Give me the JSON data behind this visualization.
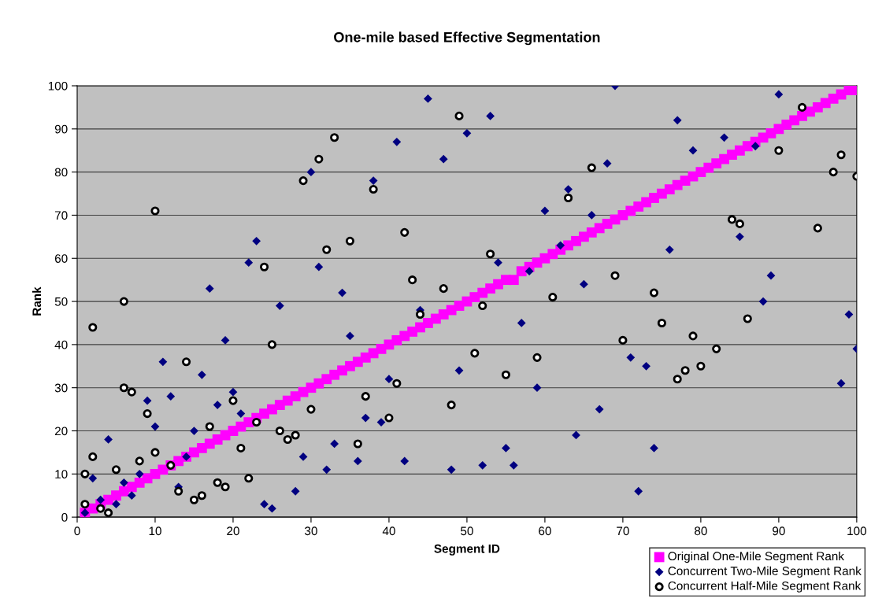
{
  "chart_data": {
    "type": "scatter",
    "title": "One-mile based Effective Segmentation",
    "xlabel": "Segment ID",
    "ylabel": "Rank",
    "xlim": [
      0,
      100
    ],
    "xticks": [
      0,
      10,
      20,
      30,
      40,
      50,
      60,
      70,
      80,
      90,
      100
    ],
    "ylim": [
      0,
      100
    ],
    "yticks": [
      0,
      10,
      20,
      30,
      40,
      50,
      60,
      70,
      80,
      90,
      100
    ],
    "grid": "y",
    "legend": "bottom right",
    "series": [
      {
        "name": "Original One-Mile Segment Rank",
        "color": "#ff00ff",
        "marker": "square",
        "x": [
          1,
          2,
          3,
          4,
          5,
          6,
          7,
          8,
          9,
          10,
          11,
          12,
          13,
          14,
          15,
          16,
          17,
          18,
          19,
          20,
          21,
          22,
          23,
          24,
          25,
          26,
          27,
          28,
          29,
          30,
          31,
          32,
          33,
          34,
          35,
          36,
          37,
          38,
          39,
          40,
          41,
          42,
          43,
          44,
          45,
          46,
          47,
          48,
          49,
          50,
          51,
          52,
          53,
          54,
          55,
          56,
          57,
          58,
          59,
          60,
          61,
          62,
          63,
          64,
          65,
          66,
          67,
          68,
          69,
          70,
          71,
          72,
          73,
          74,
          75,
          76,
          77,
          78,
          79,
          80,
          81,
          82,
          83,
          84,
          85,
          86,
          87,
          88,
          89,
          90,
          91,
          92,
          93,
          94,
          95,
          96,
          97,
          98,
          99,
          100
        ],
        "values": [
          1,
          2,
          3,
          4,
          5,
          6,
          7,
          8,
          9,
          10,
          11,
          12,
          13,
          14,
          15,
          16,
          17,
          18,
          19,
          20,
          21,
          22,
          23,
          24,
          25,
          26,
          27,
          28,
          29,
          30,
          31,
          32,
          33,
          34,
          35,
          36,
          37,
          38,
          39,
          40,
          41,
          42,
          43,
          44,
          45,
          46,
          47,
          48,
          49,
          50,
          51,
          52,
          53,
          54,
          55,
          55,
          57,
          58,
          59,
          60,
          61,
          62,
          63,
          64,
          65,
          66,
          67,
          68,
          69,
          70,
          71,
          72,
          73,
          74,
          75,
          76,
          77,
          78,
          79,
          80,
          81,
          82,
          83,
          84,
          85,
          86,
          87,
          88,
          89,
          90,
          91,
          92,
          93,
          94,
          95,
          96,
          97,
          98,
          99,
          99
        ]
      },
      {
        "name": "Concurrent Two-Mile Segment Rank",
        "color": "#000080",
        "marker": "diamond",
        "x": [
          1,
          2,
          3,
          4,
          5,
          6,
          7,
          8,
          9,
          10,
          11,
          12,
          13,
          14,
          15,
          16,
          17,
          18,
          19,
          20,
          21,
          22,
          23,
          24,
          25,
          26,
          28,
          29,
          30,
          31,
          32,
          33,
          34,
          35,
          36,
          37,
          38,
          39,
          40,
          41,
          42,
          44,
          45,
          47,
          48,
          49,
          50,
          52,
          53,
          54,
          55,
          56,
          57,
          58,
          59,
          60,
          62,
          63,
          64,
          65,
          66,
          67,
          68,
          69,
          71,
          72,
          73,
          74,
          76,
          77,
          79,
          83,
          85,
          87,
          88,
          89,
          90,
          98,
          99,
          100
        ],
        "values": [
          1,
          9,
          4,
          18,
          3,
          8,
          5,
          10,
          27,
          21,
          36,
          28,
          7,
          14,
          20,
          33,
          53,
          26,
          41,
          29,
          24,
          59,
          64,
          3,
          2,
          49,
          6,
          14,
          80,
          58,
          11,
          17,
          52,
          42,
          13,
          23,
          78,
          22,
          32,
          87,
          13,
          48,
          97,
          83,
          11,
          34,
          89,
          12,
          93,
          59,
          16,
          12,
          45,
          57,
          30,
          71,
          63,
          76,
          19,
          54,
          70,
          25,
          82,
          100,
          37,
          6,
          35,
          16,
          62,
          92,
          85,
          88,
          65,
          86,
          50,
          56,
          98,
          31,
          47,
          39
        ]
      },
      {
        "name": "Concurrent Half-Mile Segment Rank",
        "color": "#ffffff",
        "marker": "circle",
        "x": [
          1,
          1,
          2,
          2,
          3,
          4,
          5,
          6,
          6,
          7,
          8,
          9,
          10,
          10,
          12,
          13,
          14,
          15,
          16,
          17,
          18,
          19,
          20,
          21,
          22,
          23,
          24,
          25,
          26,
          27,
          28,
          29,
          30,
          31,
          32,
          33,
          35,
          36,
          37,
          38,
          40,
          41,
          42,
          43,
          44,
          47,
          48,
          49,
          51,
          52,
          53,
          55,
          59,
          61,
          63,
          66,
          69,
          70,
          74,
          75,
          77,
          78,
          79,
          80,
          82,
          84,
          85,
          86,
          90,
          93,
          95,
          97,
          98,
          100
        ],
        "values": [
          10,
          3,
          44,
          14,
          2,
          1,
          11,
          50,
          30,
          29,
          13,
          24,
          71,
          15,
          12,
          6,
          36,
          4,
          5,
          21,
          8,
          7,
          27,
          16,
          9,
          22,
          58,
          40,
          20,
          18,
          19,
          78,
          25,
          83,
          62,
          88,
          64,
          17,
          28,
          76,
          23,
          31,
          66,
          55,
          47,
          53,
          26,
          93,
          38,
          49,
          61,
          33,
          37,
          51,
          74,
          81,
          56,
          41,
          52,
          45,
          32,
          34,
          42,
          35,
          39,
          69,
          68,
          46,
          85,
          95,
          67,
          80,
          84,
          79
        ]
      }
    ]
  }
}
